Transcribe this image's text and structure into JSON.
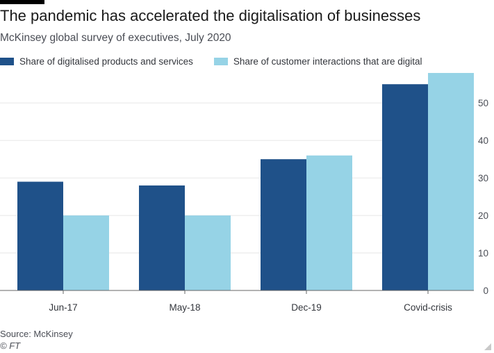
{
  "header": {
    "title": "The pandemic has accelerated the digitalisation of businesses",
    "subtitle": "McKinsey global survey of executives, July 2020"
  },
  "legend": {
    "items": [
      {
        "label": "Share of digitalised products and services",
        "color": "#1f5189"
      },
      {
        "label": "Share of customer interactions that are digital",
        "color": "#96d3e6"
      }
    ],
    "placement": "top-left"
  },
  "footer": {
    "source": "Source: McKinsey",
    "credit": "© FT"
  },
  "chart_data": {
    "type": "bar",
    "categories": [
      "Jun-17",
      "May-18",
      "Dec-19",
      "Covid-crisis"
    ],
    "series": [
      {
        "name": "Share of digitalised products and services",
        "values": [
          29,
          28,
          35,
          55
        ],
        "color": "#1f5189"
      },
      {
        "name": "Share of customer interactions that are digital",
        "values": [
          20,
          20,
          36,
          58
        ],
        "color": "#96d3e6"
      }
    ],
    "title": "The pandemic has accelerated the digitalisation of businesses",
    "subtitle": "McKinsey global survey of executives, July 2020",
    "xlabel": "",
    "ylabel": "",
    "ylim": [
      0,
      58
    ],
    "yticks": [
      0,
      10,
      20,
      30,
      40,
      50
    ],
    "y_axis_side": "right",
    "grid": true,
    "gridline_color": "#e6e6e6",
    "axis_color": "#666666"
  }
}
